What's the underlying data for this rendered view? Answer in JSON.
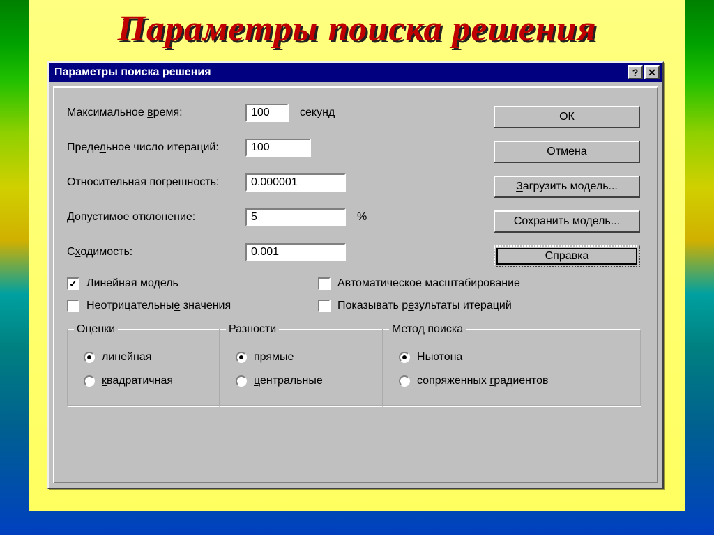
{
  "slide_title": "Параметры поиска решения",
  "dialog": {
    "title": "Параметры поиска решения",
    "fields": {
      "max_time": {
        "label_pre": "Максимальное ",
        "label_u": "в",
        "label_post": "ремя:",
        "value": "100",
        "unit": "секунд"
      },
      "iterations": {
        "label_pre": "Преде",
        "label_u": "л",
        "label_post": "ьное число итераций:",
        "value": "100"
      },
      "precision": {
        "label_pre": "",
        "label_u": "О",
        "label_post": "тносительная погрешность:",
        "value": "0.000001"
      },
      "tolerance": {
        "label_pre": "",
        "label_u": "Д",
        "label_post": "опустимое отклонение:",
        "value": "5",
        "unit": "%"
      },
      "convergence": {
        "label_pre": "С",
        "label_u": "х",
        "label_post": "одимость:",
        "value": "0.001"
      }
    },
    "buttons": {
      "ok": "ОК",
      "cancel": "Отмена",
      "load": {
        "pre": "",
        "u": "З",
        "post": "агрузить модель..."
      },
      "save": {
        "pre": "Сох",
        "u": "р",
        "post": "анить модель..."
      },
      "help": {
        "pre": "",
        "u": "С",
        "post": "правка"
      }
    },
    "checks": {
      "linear": {
        "checked": true,
        "pre": "",
        "u": "Л",
        "post": "инейная модель"
      },
      "nonneg": {
        "checked": false,
        "pre": "Неотрицательны",
        "u": "е",
        "post": " значения"
      },
      "autoscale": {
        "checked": false,
        "pre": "Авто",
        "u": "м",
        "post": "атическое масштабирование"
      },
      "showiter": {
        "checked": false,
        "pre": "Показывать р",
        "u": "е",
        "post": "зультаты итераций"
      }
    },
    "groups": {
      "estimates": {
        "legend": "Оценки",
        "opt1": {
          "selected": true,
          "pre": "л",
          "u": "и",
          "post": "нейная"
        },
        "opt2": {
          "selected": false,
          "pre": "",
          "u": "к",
          "post": "вадратичная"
        }
      },
      "derivatives": {
        "legend": "Разности",
        "opt1": {
          "selected": true,
          "pre": "",
          "u": "п",
          "post": "рямые"
        },
        "opt2": {
          "selected": false,
          "pre": "",
          "u": "ц",
          "post": "ентральные"
        }
      },
      "search": {
        "legend": "Метод поиска",
        "opt1": {
          "selected": true,
          "pre": "",
          "u": "Н",
          "post": "ьютона"
        },
        "opt2": {
          "selected": false,
          "pre": "сопряженных ",
          "u": "г",
          "post": "радиентов"
        }
      }
    }
  }
}
